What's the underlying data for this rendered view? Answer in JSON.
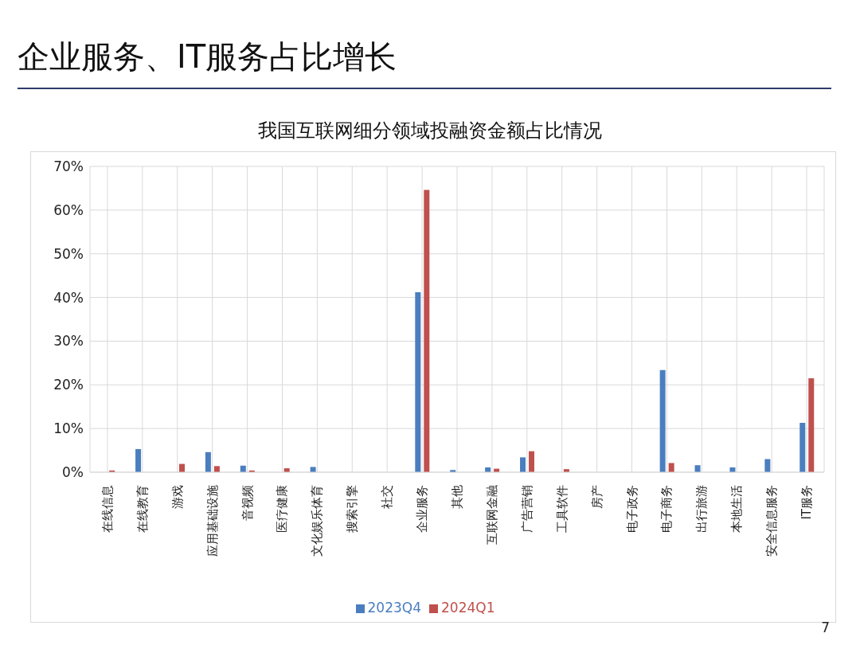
{
  "chart_data": {
    "type": "bar",
    "title": "企业服务、IT服务占比增长",
    "subtitle": "我国互联网细分领域投融资金额占比情况",
    "categories": [
      "在线信息",
      "在线教育",
      "游戏",
      "应用基础设施",
      "音视频",
      "医疗健康",
      "文化娱乐体育",
      "搜索引擎",
      "社交",
      "企业服务",
      "其他",
      "互联网金融",
      "广告营销",
      "工具软件",
      "房产",
      "电子政务",
      "电子商务",
      "出行旅游",
      "本地生活",
      "安全信息服务",
      "IT服务"
    ],
    "series": [
      {
        "name": "2023Q4",
        "color": "#4a7ebf",
        "values": [
          null,
          5.3,
          null,
          4.6,
          1.5,
          null,
          1.2,
          null,
          null,
          41.2,
          0.5,
          1.1,
          3.4,
          null,
          null,
          null,
          23.4,
          1.6,
          1.1,
          3.0,
          11.3
        ]
      },
      {
        "name": "2024Q1",
        "color": "#c0504d",
        "values": [
          0.4,
          null,
          1.9,
          1.4,
          0.4,
          0.9,
          null,
          null,
          null,
          64.6,
          null,
          0.8,
          4.8,
          0.7,
          null,
          null,
          2.1,
          null,
          null,
          null,
          21.5
        ]
      }
    ],
    "ylim": [
      0,
      70
    ],
    "yticks": [
      {
        "value": 0,
        "label": "0%"
      },
      {
        "value": 10,
        "label": "10%"
      },
      {
        "value": 20,
        "label": "20%"
      },
      {
        "value": 30,
        "label": "30%"
      },
      {
        "value": 40,
        "label": "40%"
      },
      {
        "value": 50,
        "label": "50%"
      },
      {
        "value": 60,
        "label": "60%"
      },
      {
        "value": 70,
        "label": "70%"
      }
    ],
    "grid": true,
    "legend": "bottom",
    "annotations": [
      "7"
    ]
  }
}
